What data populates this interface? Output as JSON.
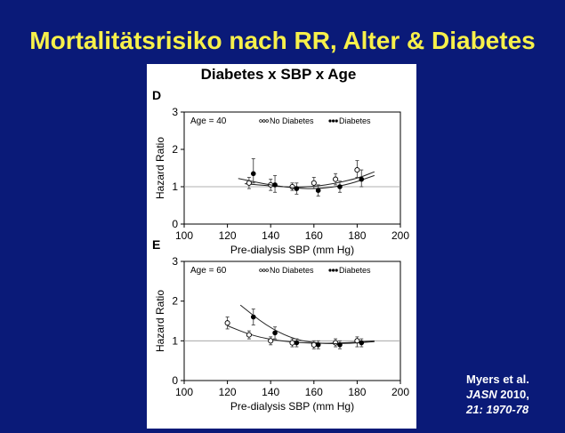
{
  "slide": {
    "title": "Mortalitätsrisiko nach RR, Alter & Diabetes",
    "background_color": "#0a1a78",
    "title_color": "#f7f04a"
  },
  "figure": {
    "title": "Diabetes x SBP x Age",
    "legend": {
      "no_diabetes": "No Diabetes",
      "diabetes": "Diabetes"
    }
  },
  "citation": {
    "line1": "Myers et al.",
    "journal": "JASN",
    "year": " 2010,",
    "line3": "21: 1970-78"
  },
  "chart_data": [
    {
      "type": "scatter",
      "panel_label": "D",
      "annotation": "Age = 40",
      "xlabel": "Pre-dialysis SBP (mm Hg)",
      "ylabel": "Hazard Ratio",
      "xlim": [
        100,
        200
      ],
      "ylim": [
        0,
        3
      ],
      "x_ticks": [
        100,
        120,
        140,
        160,
        180,
        200
      ],
      "y_ticks": [
        0,
        1,
        2,
        3
      ],
      "reference_line": 1,
      "grid": false,
      "legend_position": "top-right",
      "series": [
        {
          "name": "No Diabetes",
          "marker": "open-circle",
          "x": [
            130,
            140,
            150,
            160,
            170,
            180
          ],
          "y": [
            1.1,
            1.05,
            1.0,
            1.1,
            1.2,
            1.45
          ],
          "err_low": [
            0.95,
            0.9,
            0.9,
            0.95,
            1.05,
            1.25
          ],
          "err_high": [
            1.25,
            1.2,
            1.1,
            1.25,
            1.35,
            1.7
          ],
          "fit": {
            "x": [
              128,
              140,
              152,
              165,
              180,
              188
            ],
            "y": [
              1.08,
              1.02,
              0.98,
              1.03,
              1.22,
              1.4
            ]
          }
        },
        {
          "name": "Diabetes",
          "marker": "filled-circle",
          "x": [
            132,
            142,
            152,
            162,
            172,
            182
          ],
          "y": [
            1.35,
            1.05,
            0.95,
            0.9,
            1.0,
            1.2
          ],
          "err_low": [
            1.1,
            0.85,
            0.8,
            0.75,
            0.85,
            1.0
          ],
          "err_high": [
            1.75,
            1.3,
            1.1,
            1.05,
            1.15,
            1.45
          ],
          "fit": {
            "x": [
              125,
              140,
              152,
              162,
              175,
              188
            ],
            "y": [
              1.22,
              1.04,
              0.96,
              0.94,
              1.04,
              1.3
            ]
          }
        }
      ]
    },
    {
      "type": "scatter",
      "panel_label": "E",
      "annotation": "Age = 60",
      "xlabel": "Pre-dialysis SBP (mm Hg)",
      "ylabel": "Hazard Ratio",
      "xlim": [
        100,
        200
      ],
      "ylim": [
        0,
        3
      ],
      "x_ticks": [
        100,
        120,
        140,
        160,
        180,
        200
      ],
      "y_ticks": [
        0,
        1,
        2,
        3
      ],
      "reference_line": 1,
      "grid": false,
      "legend_position": "top-right",
      "series": [
        {
          "name": "No Diabetes",
          "marker": "open-circle",
          "x": [
            120,
            130,
            140,
            150,
            160,
            170,
            180
          ],
          "y": [
            1.45,
            1.15,
            1.0,
            0.95,
            0.9,
            0.95,
            1.0
          ],
          "err_low": [
            1.3,
            1.05,
            0.9,
            0.85,
            0.8,
            0.85,
            0.85
          ],
          "err_high": [
            1.6,
            1.25,
            1.1,
            1.05,
            1.0,
            1.05,
            1.1
          ],
          "fit": {
            "x": [
              120,
              132,
              145,
              160,
              175,
              188
            ],
            "y": [
              1.38,
              1.12,
              0.99,
              0.93,
              0.95,
              1.0
            ]
          }
        },
        {
          "name": "Diabetes",
          "marker": "filled-circle",
          "x": [
            132,
            142,
            152,
            162,
            172,
            182
          ],
          "y": [
            1.6,
            1.2,
            0.95,
            0.9,
            0.9,
            0.95
          ],
          "err_low": [
            1.4,
            1.05,
            0.85,
            0.8,
            0.8,
            0.85
          ],
          "err_high": [
            1.8,
            1.35,
            1.05,
            1.0,
            1.0,
            1.05
          ],
          "fit": {
            "x": [
              126,
              138,
              150,
              162,
              175,
              188
            ],
            "y": [
              1.9,
              1.38,
              1.05,
              0.93,
              0.93,
              0.98
            ]
          }
        }
      ]
    }
  ]
}
